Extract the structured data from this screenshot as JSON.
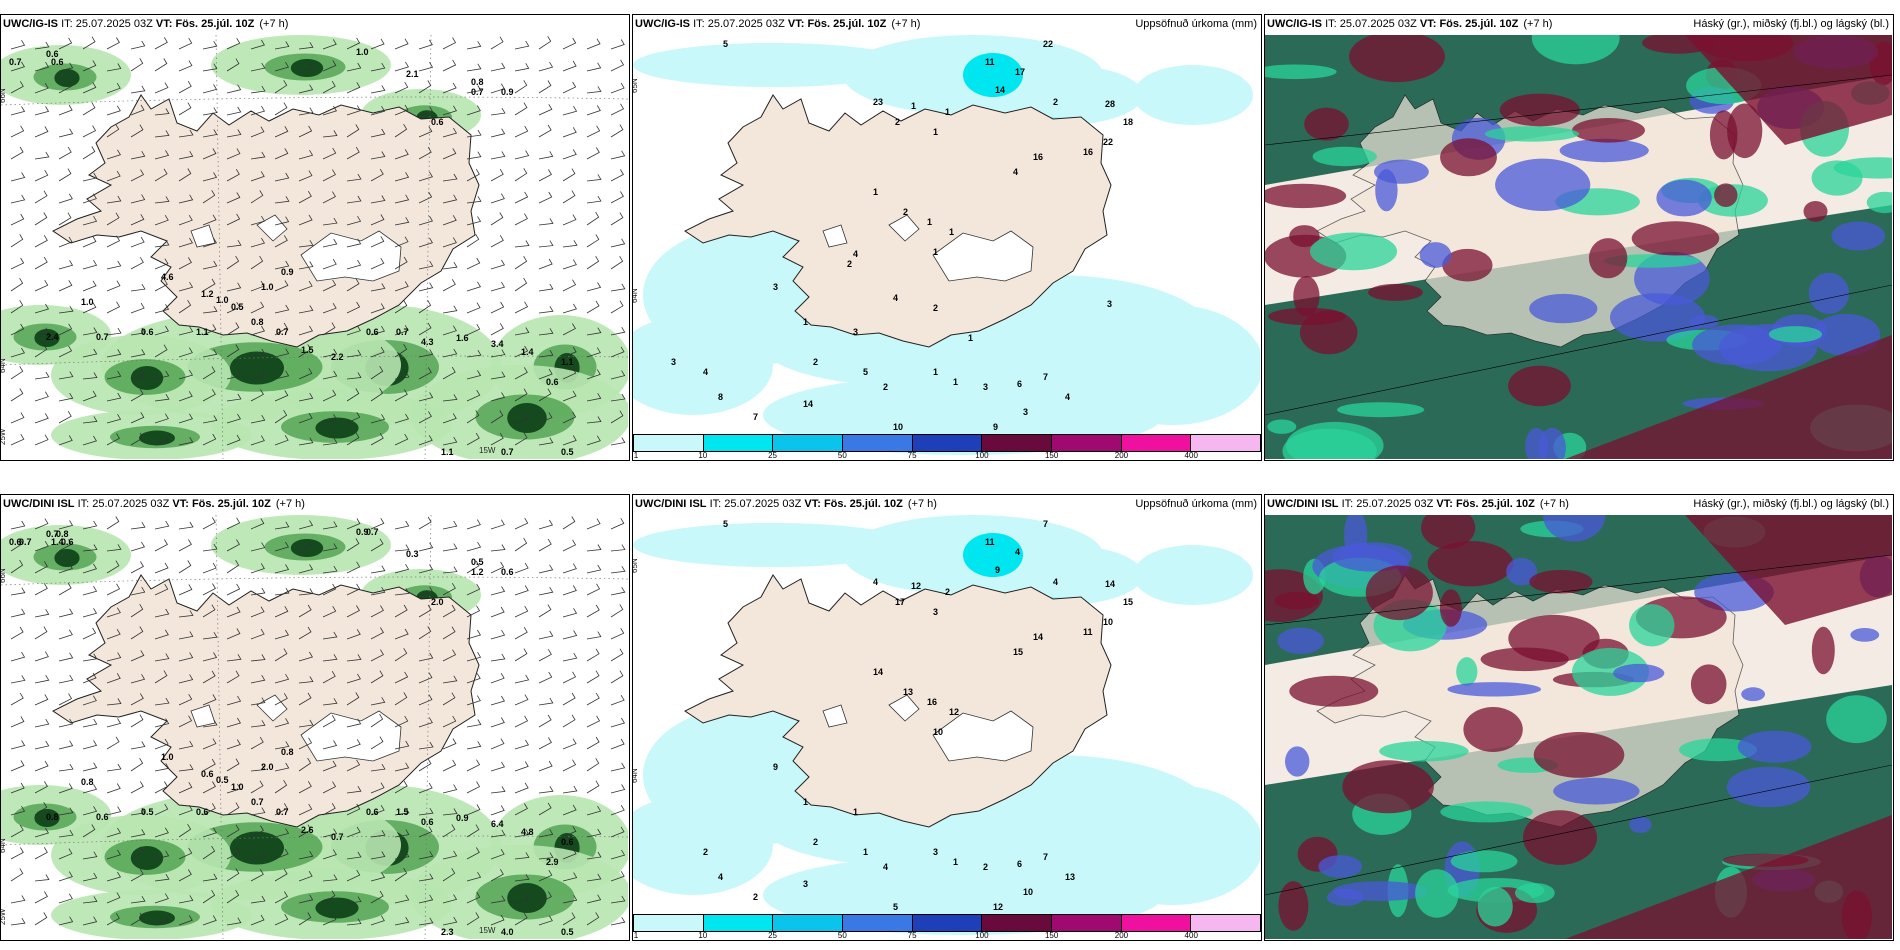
{
  "panels": [
    {
      "model": "UWC/IG-IS",
      "it_label": "IT:",
      "it_time": "25.07.2025 03Z",
      "vt_label": "VT:",
      "vt_time": "Fös. 25.júl. 10Z",
      "lead": "(+7 h)",
      "right_title": "",
      "type": "wind-precip",
      "axis_labels": [
        "66N",
        "64N",
        "25W",
        "15W"
      ],
      "values": [
        "0.7",
        "0.6",
        "0.6",
        "1.0",
        "2.1",
        "0.7",
        "0.6",
        "0.8",
        "0.9",
        "1.0",
        "4.6",
        "1.2",
        "1.0",
        "0.5",
        "1.0",
        "0.9",
        "2.4",
        "0.7",
        "0.6",
        "1.1",
        "0.8",
        "0.7",
        "1.5",
        "2.2",
        "0.6",
        "0.7",
        "4.3",
        "1.6",
        "3.4",
        "1.4",
        "0.6",
        "1.1",
        "0.5",
        "0.7",
        "1.1"
      ]
    },
    {
      "model": "UWC/IG-IS",
      "it_label": "IT:",
      "it_time": "25.07.2025 03Z",
      "vt_label": "VT:",
      "vt_time": "Fös. 25.júl. 10Z",
      "lead": "(+7 h)",
      "right_title": "Uppsöfnuð úrkoma (mm)",
      "type": "accum",
      "axis_labels": [
        "65N",
        "64N"
      ],
      "values": [
        "5",
        "22",
        "11",
        "17",
        "14",
        "23",
        "1",
        "1",
        "2",
        "1",
        "2",
        "28",
        "18",
        "22",
        "16",
        "16",
        "4",
        "1",
        "2",
        "1",
        "1",
        "1",
        "3",
        "1",
        "3",
        "2",
        "5",
        "2",
        "1",
        "1",
        "3",
        "6",
        "7",
        "4",
        "3",
        "9",
        "10",
        "13",
        "14",
        "7",
        "8",
        "4",
        "3",
        "4",
        "2",
        "4",
        "2",
        "1",
        "3"
      ],
      "colorbar": {
        "colors": [
          "#c8f8fa",
          "#00e6f0",
          "#0ac4ec",
          "#3a78e6",
          "#1f3fb8",
          "#6a0a3c",
          "#a00a70",
          "#f010a0",
          "#f6b6f0"
        ],
        "ticks": [
          "1",
          "10",
          "25",
          "50",
          "75",
          "100",
          "150",
          "200",
          "400"
        ]
      }
    },
    {
      "model": "UWC/IG-IS",
      "it_label": "IT:",
      "it_time": "25.07.2025 03Z",
      "vt_label": "VT:",
      "vt_time": "Fös. 25.júl. 10Z",
      "lead": "(+7 h)",
      "right_title": "Háský (gr.), miðský (fj.bl.) og lágský (bl.)",
      "type": "clouds",
      "axis_labels": [],
      "values": []
    },
    {
      "model": "UWC/DINI ISL",
      "it_label": "IT:",
      "it_time": "25.07.2025 03Z",
      "vt_label": "VT:",
      "vt_time": "Fös. 25.júl. 10Z",
      "lead": "(+7 h)",
      "right_title": "",
      "type": "wind-precip",
      "axis_labels": [
        "66N",
        "64N",
        "25W",
        "15W"
      ],
      "values": [
        "0.6",
        "1.4",
        "0.7",
        "0.9",
        "0.3",
        "1.2",
        "2.0",
        "0.5",
        "0.6",
        "0.8",
        "1.0",
        "0.6",
        "0.5",
        "1.0",
        "2.0",
        "0.8",
        "0.8",
        "0.6",
        "0.5",
        "0.6",
        "0.7",
        "0.7",
        "2.6",
        "0.7",
        "0.6",
        "1.5",
        "0.6",
        "0.9",
        "6.4",
        "4.8",
        "2.9",
        "0.6",
        "0.5",
        "4.0",
        "2.3",
        "0.7",
        "0.6",
        "0.8",
        "0.7"
      ]
    },
    {
      "model": "UWC/DINI ISL",
      "it_label": "IT:",
      "it_time": "25.07.2025 03Z",
      "vt_label": "VT:",
      "vt_time": "Fös. 25.júl. 10Z",
      "lead": "(+7 h)",
      "right_title": "Uppsöfnuð úrkoma (mm)",
      "type": "accum",
      "axis_labels": [
        "65N",
        "64N"
      ],
      "values": [
        "5",
        "7",
        "11",
        "4",
        "9",
        "4",
        "12",
        "2",
        "17",
        "3",
        "4",
        "14",
        "15",
        "10",
        "11",
        "14",
        "15",
        "14",
        "13",
        "16",
        "12",
        "10",
        "9",
        "1",
        "1",
        "2",
        "1",
        "4",
        "3",
        "1",
        "2",
        "6",
        "7",
        "13",
        "10",
        "12",
        "5",
        "10",
        "3",
        "2",
        "4",
        "2"
      ],
      "colorbar": {
        "colors": [
          "#c8f8fa",
          "#00e6f0",
          "#0ac4ec",
          "#3a78e6",
          "#1f3fb8",
          "#6a0a3c",
          "#a00a70",
          "#f010a0",
          "#f6b6f0"
        ],
        "ticks": [
          "1",
          "10",
          "25",
          "50",
          "75",
          "100",
          "150",
          "200",
          "400"
        ]
      }
    },
    {
      "model": "UWC/DINI ISL",
      "it_label": "IT:",
      "it_time": "25.07.2025 03Z",
      "vt_label": "VT:",
      "vt_time": "Fös. 25.júl. 10Z",
      "lead": "(+7 h)",
      "right_title": "Háský (gr.), miðský (fj.bl.) og lágský (bl.)",
      "type": "clouds",
      "axis_labels": [],
      "values": []
    }
  ],
  "colors": {
    "land": "#f3e6da",
    "green_light": "#b8e6b0",
    "green_mid": "#5aa85a",
    "green_dark": "#144a1e",
    "cyan_light": "#c8f8fa",
    "cloud_high_green": "#1e8a5a",
    "cloud_mid_maroon": "#7a1030",
    "cloud_low_blue": "#4a5ad8"
  }
}
